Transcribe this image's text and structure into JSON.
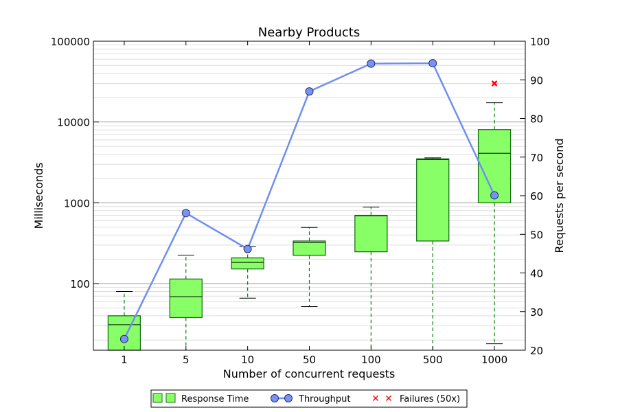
{
  "chart_data": {
    "type": "box+line",
    "title": "Nearby Products",
    "xlabel": "Number of concurrent requests",
    "ylabel_left": "Milliseconds",
    "ylabel_right": "Requests per second",
    "categories": [
      "1",
      "5",
      "10",
      "50",
      "100",
      "500",
      "1000"
    ],
    "y_left": {
      "scale": "log",
      "lim": [
        15,
        100000
      ],
      "ticks": [
        100,
        1000,
        10000,
        100000
      ],
      "tick_labels": [
        "100",
        "1000",
        "10000",
        "100000"
      ]
    },
    "y_right": {
      "scale": "linear",
      "lim": [
        20,
        100
      ],
      "ticks": [
        20,
        30,
        40,
        50,
        60,
        70,
        80,
        90,
        100
      ],
      "tick_labels": [
        "20",
        "30",
        "40",
        "50",
        "60",
        "70",
        "80",
        "90",
        "100"
      ]
    },
    "grid": true,
    "series": [
      {
        "name": "Response Time",
        "kind": "box",
        "boxes": [
          {
            "whisker_low": 15,
            "q1": 15,
            "median": 31,
            "q3": 40,
            "whisker_high": 80
          },
          {
            "whisker_low": 15,
            "q1": 38,
            "median": 69,
            "q3": 114,
            "whisker_high": 225
          },
          {
            "whisker_low": 66,
            "q1": 152,
            "median": 183,
            "q3": 208,
            "whisker_high": 287
          },
          {
            "whisker_low": 52,
            "q1": 224,
            "median": 322,
            "q3": 337,
            "whisker_high": 496
          },
          {
            "whisker_low": 15,
            "q1": 248,
            "median": 690,
            "q3": 700,
            "whisker_high": 885
          },
          {
            "whisker_low": 15,
            "q1": 337,
            "median": 3430,
            "q3": 3500,
            "whisker_high": 3600
          },
          {
            "whisker_low": 18,
            "q1": 1000,
            "median": 4100,
            "q3": 8050,
            "whisker_high": 17300
          }
        ]
      },
      {
        "name": "Throughput",
        "kind": "line",
        "axis": "right",
        "values": [
          22.9,
          55.5,
          46.2,
          87.0,
          94.2,
          94.3,
          60.1
        ]
      },
      {
        "name": "Failures (50x)",
        "kind": "marker",
        "points": [
          {
            "category": "1000",
            "value": 30000
          }
        ]
      }
    ],
    "legend": {
      "placement": "bottom-center",
      "entries": [
        "Response Time",
        "Throughput",
        "Failures (50x)"
      ]
    },
    "colors": {
      "box_fill": "#88ff66",
      "box_edge": "#1a6e1a",
      "whisker": "#008000",
      "line": "#6f8ff0",
      "marker_fill": "#7a93f2",
      "failure": "#ff0000"
    }
  }
}
